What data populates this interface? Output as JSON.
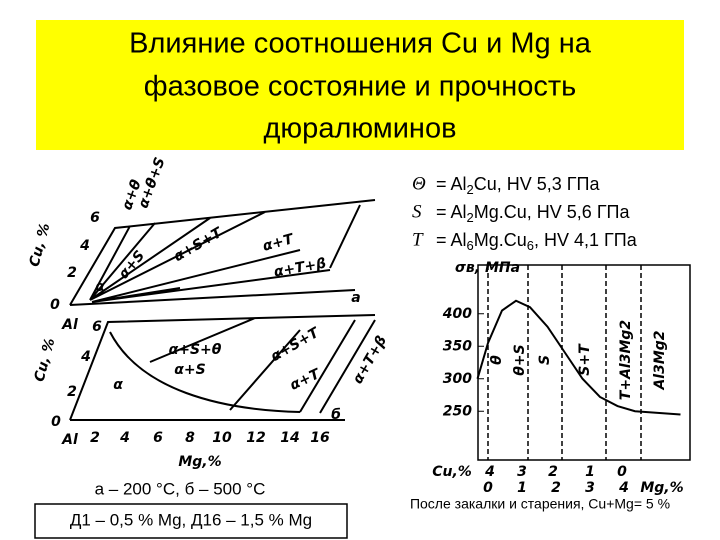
{
  "title": {
    "lines": [
      "Влияние соотношения Cu и Mg на",
      "фазовое состояние и прочность",
      "дюралюминов"
    ]
  },
  "phases": [
    {
      "symbol": "Θ",
      "parts": [
        "= Al",
        "2",
        "Cu, HV 5,3 ГПа"
      ]
    },
    {
      "symbol": "S",
      "parts": [
        "= Al",
        "2",
        "Mg.Cu, HV 5,6 ГПа"
      ]
    },
    {
      "symbol": "T",
      "parts": [
        "= Al",
        "6",
        "Mg.Cu",
        "6",
        ", HV 4,1 ГПа"
      ]
    }
  ],
  "diagram_a": {
    "labels": [
      "α+θ",
      "α+θ+S",
      "Cu, %",
      "6",
      "4",
      "2",
      "0",
      "Al",
      "α+S",
      "α+S+T",
      "α+T",
      "α+T+β",
      "α",
      "а"
    ]
  },
  "diagram_b": {
    "labels": [
      "Cu, %",
      "6",
      "4",
      "2",
      "0",
      "Al",
      "2",
      "4",
      "6",
      "8",
      "10",
      "12",
      "14",
      "16",
      "Mg,%",
      "α+S+θ",
      "α+S",
      "α+S+T",
      "α+T",
      "α+T+β",
      "α",
      "б"
    ]
  },
  "temperature_caption": "а – 200 °С, б – 500 °С",
  "alloys_box": "Д1 – 0,5 % Mg, Д16 – 1,5 % Mg",
  "strength_chart": {
    "y_label": "σв, МПа",
    "ylim": [
      175,
      475
    ],
    "yticks": [
      250,
      300,
      350,
      400
    ],
    "phase_labels": [
      "θ",
      "θ+S",
      "S",
      "S+T",
      "T+Al3Mg2",
      "Al3Mg2"
    ],
    "cu_row": [
      "Cu,%",
      "4",
      "3",
      "2",
      "1",
      "0"
    ],
    "mg_row": [
      "0",
      "1",
      "2",
      "3",
      "4",
      "Mg,%"
    ],
    "curve": {
      "x": [
        -0.3,
        0,
        0.4,
        0.8,
        1.2,
        1.7,
        2.2,
        2.7,
        3.2,
        3.7,
        4.2,
        5.5
      ],
      "values": [
        300,
        355,
        405,
        420,
        410,
        380,
        340,
        300,
        272,
        258,
        250,
        245
      ]
    }
  },
  "chart_caption": "После закалки и старения, Cu+Mg= 5 %"
}
